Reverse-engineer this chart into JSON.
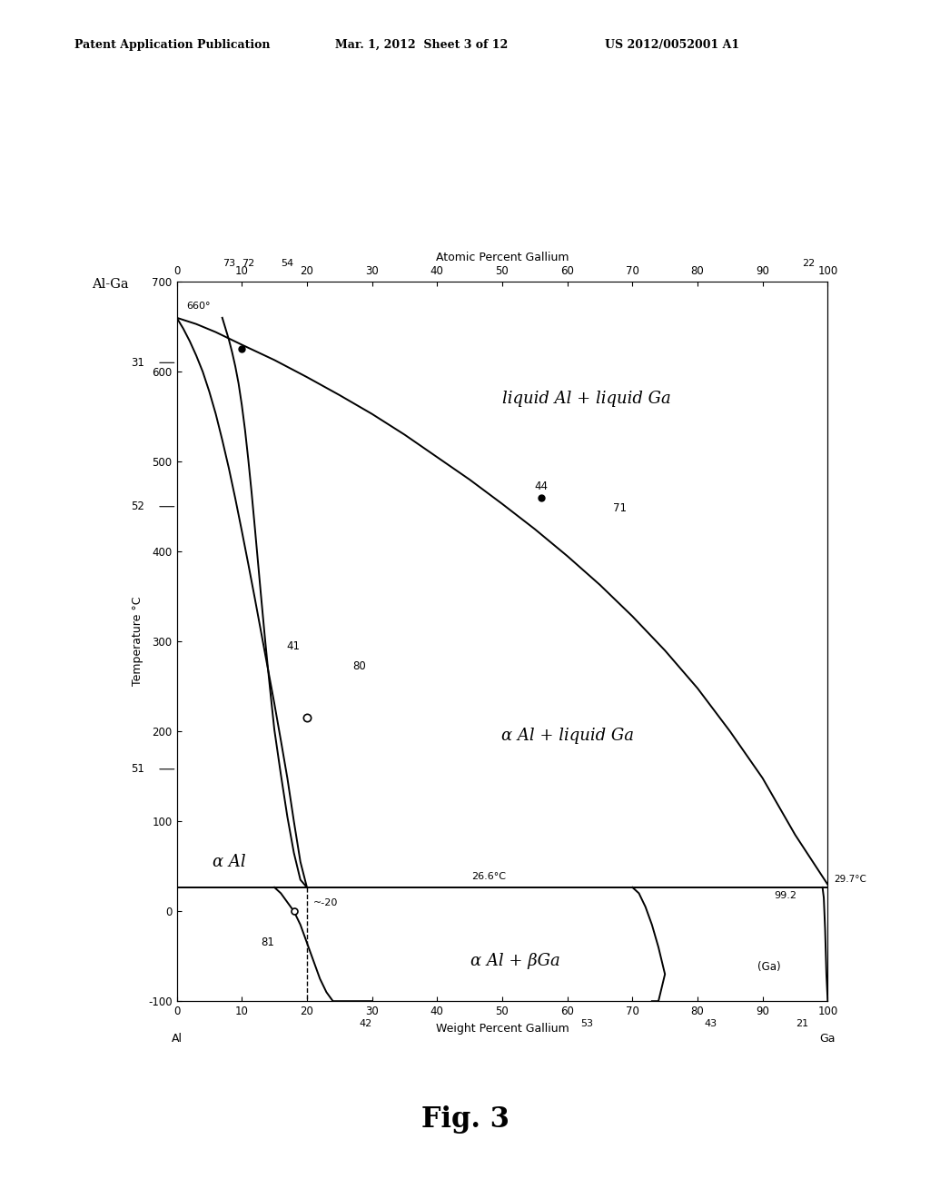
{
  "patent_header_left": "Patent Application Publication",
  "patent_header_mid": "Mar. 1, 2012  Sheet 3 of 12",
  "patent_header_right": "US 2012/0052001 A1",
  "fig_caption": "Fig. 3",
  "diagram_title": "Al-Ga",
  "top_axis_label": "Atomic Percent Gallium",
  "bottom_axis_label": "Weight Percent Gallium",
  "y_axis_label": "Temperature °C",
  "xlim": [
    0,
    100
  ],
  "ylim": [
    -100,
    700
  ],
  "xticks_bottom": [
    0,
    10,
    20,
    30,
    40,
    50,
    60,
    70,
    80,
    90,
    100
  ],
  "yticks": [
    -100,
    0,
    100,
    200,
    300,
    400,
    500,
    600,
    700
  ],
  "background_color": "#ffffff",
  "line_color": "#000000"
}
